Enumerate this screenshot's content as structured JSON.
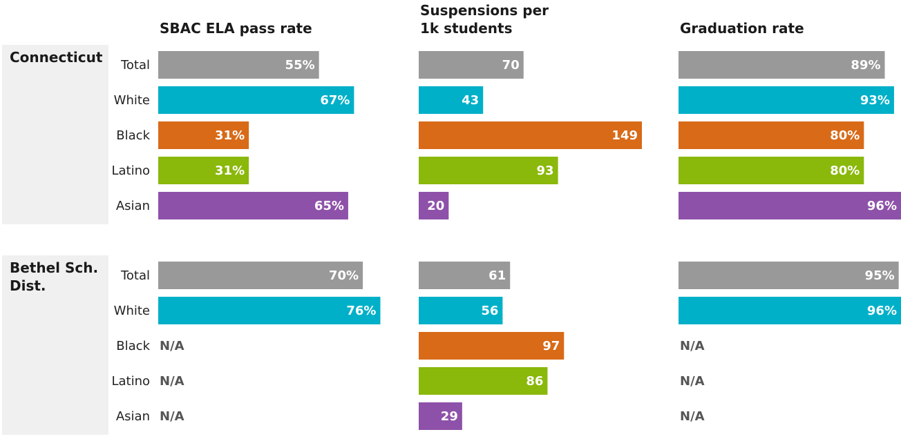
{
  "chart_data": {
    "type": "bar",
    "orientation": "horizontal",
    "metrics": [
      {
        "title": "SBAC ELA pass rate",
        "title_lines": [
          "SBAC ELA pass rate"
        ],
        "unit": "%",
        "xlim": [
          0,
          100
        ]
      },
      {
        "title": "Suspensions per 1k students",
        "title_lines": [
          "Suspensions per",
          "1k students"
        ],
        "unit": "",
        "xlim": [
          0,
          149
        ]
      },
      {
        "title": "Graduation rate",
        "title_lines": [
          "Graduation rate"
        ],
        "unit": "%",
        "xlim": [
          0,
          96
        ]
      }
    ],
    "categories": [
      "Total",
      "White",
      "Black",
      "Latino",
      "Asian"
    ],
    "colors": {
      "Total": "#999999",
      "White": "#00b0c8",
      "Black": "#d86a18",
      "Latino": "#8ab80b",
      "Asian": "#8e51a9"
    },
    "na_label": "N/A",
    "groups": [
      {
        "name": "Connecticut",
        "name_lines": [
          "Connecticut"
        ],
        "values": [
          [
            55,
            70,
            89
          ],
          [
            67,
            43,
            93
          ],
          [
            31,
            149,
            80
          ],
          [
            31,
            93,
            80
          ],
          [
            65,
            20,
            96
          ]
        ]
      },
      {
        "name": "Bethel Sch. Dist.",
        "name_lines": [
          "Bethel Sch.",
          "Dist."
        ],
        "values": [
          [
            70,
            61,
            95
          ],
          [
            76,
            56,
            96
          ],
          [
            null,
            97,
            null
          ],
          [
            null,
            86,
            null
          ],
          [
            null,
            29,
            null
          ]
        ]
      }
    ]
  }
}
